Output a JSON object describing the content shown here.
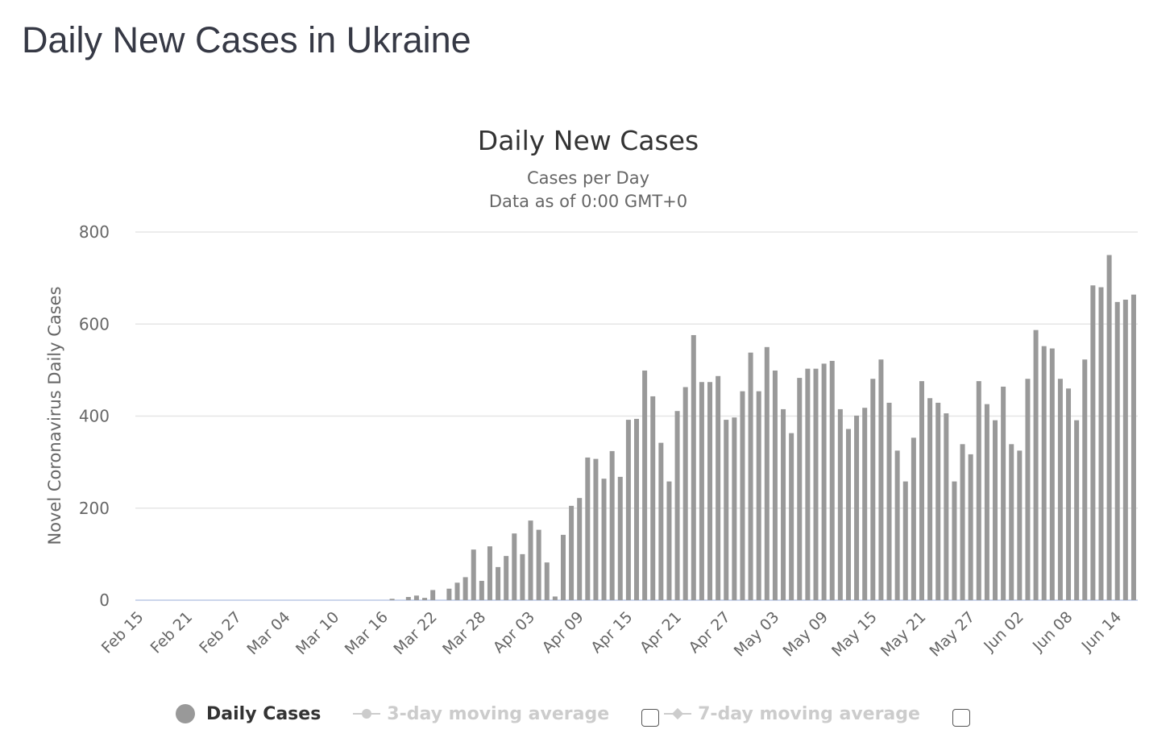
{
  "page": {
    "title": "Daily New Cases in Ukraine"
  },
  "chart_data": {
    "type": "bar",
    "title": "Daily New Cases",
    "subtitle_lines": [
      "Cases per Day",
      "Data as of 0:00 GMT+0"
    ],
    "xlabel": "",
    "ylabel": "Novel Coronavirus Daily Cases",
    "ylim": [
      0,
      800
    ],
    "yticks": [
      0,
      200,
      400,
      600,
      800
    ],
    "grid": true,
    "start_date": "Feb 15",
    "x_tick_labels": [
      "Feb 15",
      "Feb 21",
      "Feb 27",
      "Mar 04",
      "Mar 10",
      "Mar 16",
      "Mar 22",
      "Mar 28",
      "Apr 03",
      "Apr 09",
      "Apr 15",
      "Apr 21",
      "Apr 27",
      "May 03",
      "May 09",
      "May 15",
      "May 21",
      "May 27",
      "Jun 02",
      "Jun 08",
      "Jun 14"
    ],
    "x_tick_every": 6,
    "series": [
      {
        "name": "Daily Cases",
        "color": "#999999",
        "values": [
          0,
          0,
          0,
          0,
          0,
          0,
          0,
          0,
          0,
          0,
          0,
          0,
          0,
          0,
          0,
          0,
          0,
          0,
          0,
          0,
          0,
          0,
          0,
          0,
          0,
          0,
          0,
          0,
          0,
          0,
          0,
          3,
          0,
          7,
          10,
          5,
          22,
          0,
          25,
          38,
          50,
          110,
          42,
          117,
          72,
          96,
          145,
          100,
          173,
          153,
          82,
          8,
          142,
          205,
          222,
          310,
          307,
          264,
          324,
          268,
          392,
          394,
          499,
          443,
          342,
          258,
          411,
          463,
          576,
          474,
          474,
          487,
          392,
          397,
          454,
          538,
          454,
          550,
          499,
          415,
          363,
          483,
          503,
          503,
          514,
          520,
          415,
          372,
          401,
          418,
          481,
          523,
          429,
          325,
          258,
          353,
          476,
          439,
          429,
          406,
          258,
          339,
          317,
          476,
          426,
          391,
          464,
          339,
          325,
          481,
          587,
          552,
          547,
          481,
          460,
          391,
          523,
          684,
          680,
          750,
          648,
          653,
          664
        ]
      }
    ],
    "legend": {
      "placement": "bottom",
      "items": [
        {
          "label": "Daily Cases",
          "active": true
        },
        {
          "label": "3-day moving average",
          "active": false
        },
        {
          "label": "7-day moving average",
          "active": false
        }
      ]
    }
  }
}
